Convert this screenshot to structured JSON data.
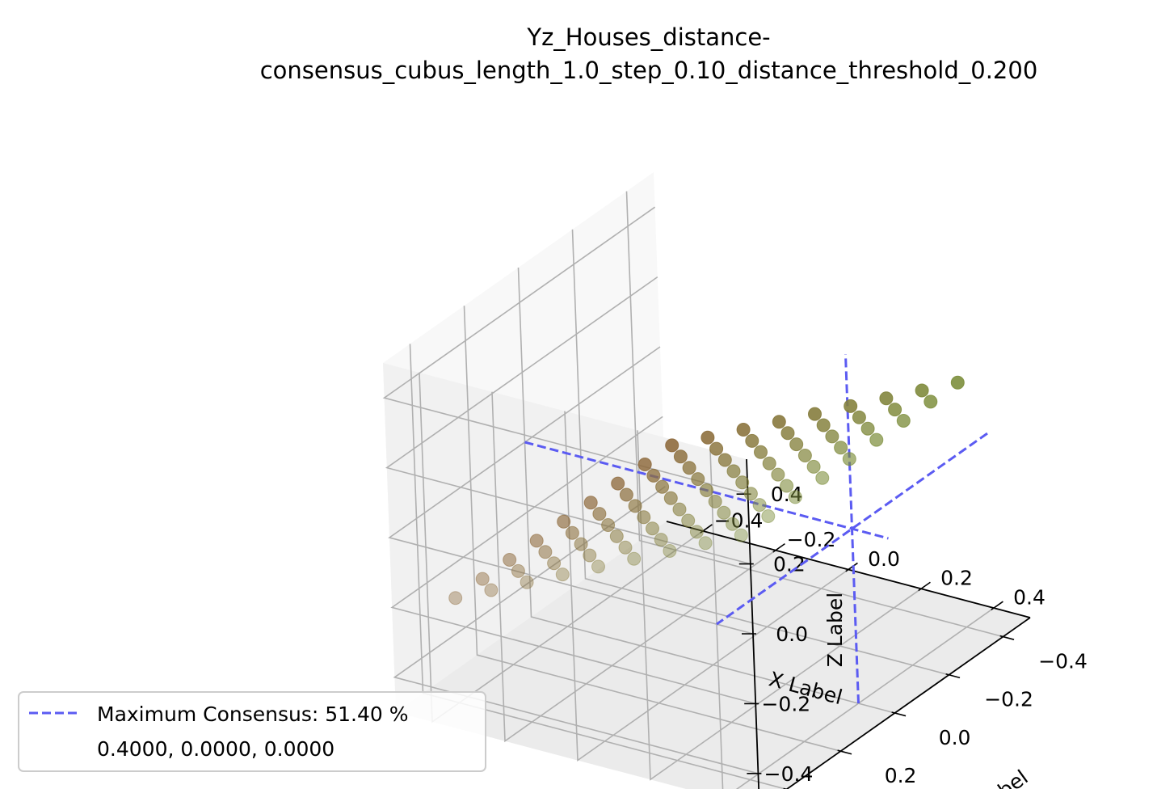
{
  "chart_data": {
    "type": "scatter",
    "title_line1": "Yz_Houses_distance-",
    "title_line2": "consensus_cubus_length_1.0_step_0.10_distance_threshold_0.200",
    "xlabel": "X Label",
    "ylabel": "Y Label",
    "zlabel": "Z Label",
    "xlim": [
      -0.5,
      0.5
    ],
    "ylim": [
      -0.5,
      0.5
    ],
    "zlim": [
      -0.5,
      0.5
    ],
    "xticks": [
      -0.4,
      -0.2,
      0.0,
      0.2,
      0.4
    ],
    "xtick_labels": [
      "−0.4",
      "−0.2",
      "0.0",
      "0.2",
      "0.4"
    ],
    "yticks": [
      -0.4,
      -0.2,
      0.0,
      0.2,
      0.4
    ],
    "ytick_labels": [
      "−0.4",
      "−0.2",
      "0.0",
      "0.2",
      "0.4"
    ],
    "zticks": [
      -0.4,
      -0.2,
      0.0,
      0.2,
      0.4
    ],
    "ztick_labels": [
      "−0.4",
      "−0.2",
      "0.0",
      "0.2",
      "0.4"
    ],
    "grid": true,
    "points": {
      "x": [
        -0.4,
        -0.3,
        -0.2,
        -0.1,
        0.0,
        0.1,
        0.2,
        0.3,
        0.4
      ],
      "y": [
        -0.4,
        -0.3,
        -0.2,
        -0.1,
        0.0,
        0.1,
        0.2,
        0.3,
        0.4
      ],
      "z_rule": "z = 0.5 * x",
      "color_near_x_low": "#8e6a3c",
      "color_near_x_high": "#7c8d3a",
      "alpha": 0.6
    },
    "consensus_lines": {
      "point": [
        0.4,
        0.0,
        0.0
      ],
      "color": "#5b5bf2",
      "style": "dashed"
    },
    "legend": {
      "position": "lower-left",
      "entry_label": "Maximum Consensus: 51.40 %",
      "entry_sublabel": "0.4000, 0.0000, 0.0000"
    }
  }
}
